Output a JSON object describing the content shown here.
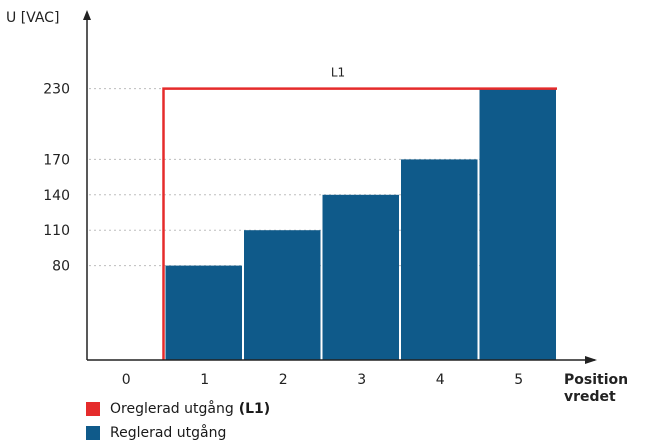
{
  "chart_data": {
    "type": "bar",
    "ylabel": "U [VAC]",
    "xlabel_lines": [
      "Position",
      "vredet"
    ],
    "categories": [
      "0",
      "1",
      "2",
      "3",
      "4",
      "5"
    ],
    "yticks": [
      80,
      110,
      140,
      170,
      230
    ],
    "ylim": [
      0,
      250
    ],
    "series": [
      {
        "name": "Reglerad utgång",
        "color": "#0f5a8a",
        "values": [
          null,
          80,
          110,
          140,
          170,
          230
        ]
      }
    ],
    "line": {
      "label": "L1",
      "value": 230,
      "from_category": 1,
      "color": "#e52b2b"
    },
    "grid_style": "dotted"
  },
  "legend": [
    {
      "label": "Oreglerad utgång",
      "bold": "(L1)",
      "color": "#e52b2b"
    },
    {
      "label": "Reglerad utgång",
      "bold": "",
      "color": "#0f5a8a"
    }
  ]
}
